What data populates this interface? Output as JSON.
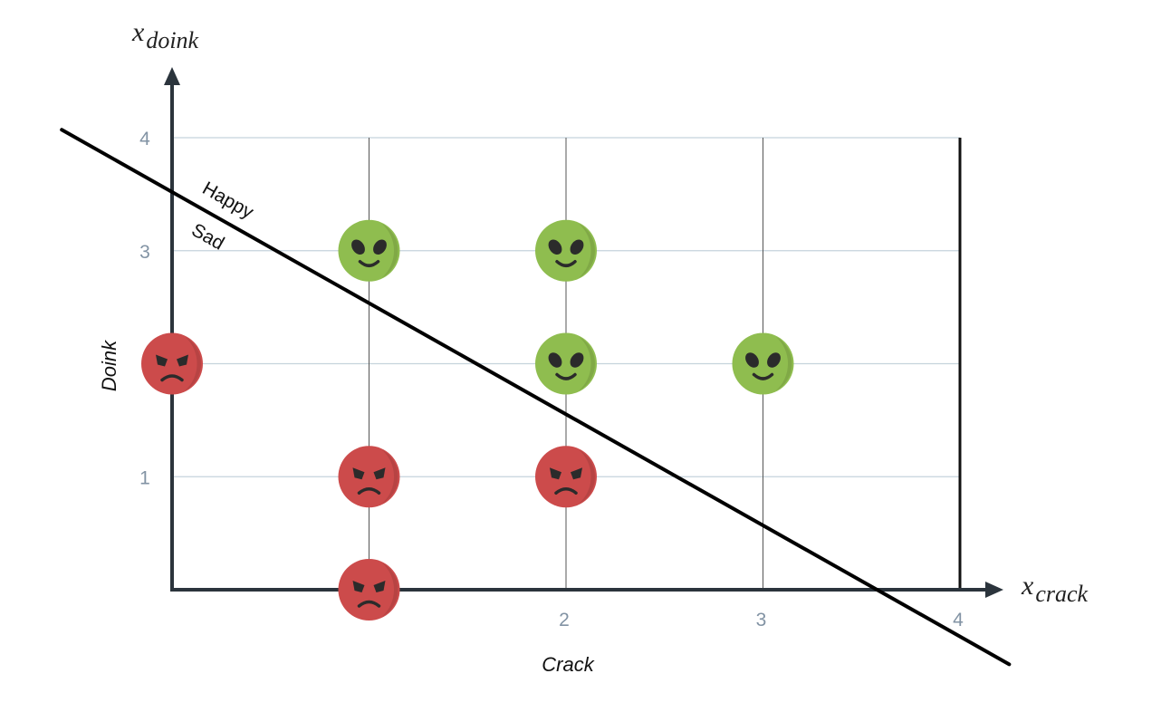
{
  "chart_data": {
    "type": "scatter",
    "title": "",
    "xlabel": "Crack",
    "ylabel": "Doink",
    "x_var": {
      "base": "x",
      "sub": "crack"
    },
    "y_var": {
      "base": "x",
      "sub": "doink"
    },
    "xlim": [
      0,
      4
    ],
    "ylim": [
      0,
      4
    ],
    "x_ticks": [
      {
        "value": 1,
        "label": ""
      },
      {
        "value": 2,
        "label": "2"
      },
      {
        "value": 3,
        "label": "3"
      },
      {
        "value": 4,
        "label": "4"
      }
    ],
    "y_ticks": [
      {
        "value": 1,
        "label": "1"
      },
      {
        "value": 2,
        "label": ""
      },
      {
        "value": 3,
        "label": "3"
      },
      {
        "value": 4,
        "label": "4"
      }
    ],
    "grid": true,
    "series": [
      {
        "name": "Happy",
        "color": "#8fbd4f",
        "icon": "happy-alien-icon",
        "points": [
          {
            "x": 1,
            "y": 3
          },
          {
            "x": 2,
            "y": 3
          },
          {
            "x": 2,
            "y": 2
          },
          {
            "x": 3,
            "y": 2
          }
        ]
      },
      {
        "name": "Sad",
        "color": "#cc4b4b",
        "icon": "angry-face-icon",
        "points": [
          {
            "x": 0,
            "y": 2
          },
          {
            "x": 1,
            "y": 1
          },
          {
            "x": 2,
            "y": 1
          },
          {
            "x": 1,
            "y": 0
          }
        ]
      }
    ],
    "decision_boundary": {
      "from": {
        "x": -0.56,
        "y": 4.07
      },
      "to": {
        "x": 4.25,
        "y": -0.66
      },
      "label_above": "Happy",
      "label_below": "Sad"
    },
    "colors": {
      "grid": "#c5d3dc",
      "grid_vertical": "#555555",
      "axis": "#2b343c",
      "boundary": "#000000"
    }
  }
}
